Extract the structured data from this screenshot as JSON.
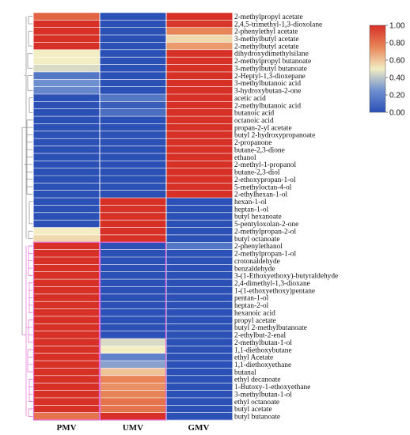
{
  "chart_data": {
    "type": "heatmap",
    "columns": [
      "PMV",
      "UMV",
      "GMV"
    ],
    "rows": [
      {
        "label": "2-methylpropyl acetate",
        "values": [
          0.85,
          0.0,
          1.0
        ]
      },
      {
        "label": "2,4,5-trimethyl-1,3-dioxolane",
        "values": [
          1.0,
          0.0,
          0.98
        ]
      },
      {
        "label": "2-phenylethyl acetate",
        "values": [
          1.0,
          0.0,
          0.75
        ]
      },
      {
        "label": "3-methylbutyl acetate",
        "values": [
          1.0,
          0.0,
          0.55
        ]
      },
      {
        "label": "2-methylbutyl acetate",
        "values": [
          1.0,
          0.0,
          0.7
        ]
      },
      {
        "label": "dihydroxydimethylsilane",
        "values": [
          0.5,
          0.0,
          1.0
        ]
      },
      {
        "label": "2-methylpropyl butanoate",
        "values": [
          0.5,
          0.0,
          1.0
        ]
      },
      {
        "label": "3-methylbutyl butanoate",
        "values": [
          0.45,
          0.0,
          1.0
        ]
      },
      {
        "label": "2-Heptyl-1,3-dioxepane",
        "values": [
          0.15,
          0.0,
          1.0
        ]
      },
      {
        "label": "3-methylbutanoic acid",
        "values": [
          0.25,
          0.0,
          1.0
        ]
      },
      {
        "label": "3-hydroxybutan-2-one",
        "values": [
          0.22,
          0.0,
          1.0
        ]
      },
      {
        "label": "acetic acid",
        "values": [
          0.0,
          0.15,
          1.0
        ]
      },
      {
        "label": "2-methylbutanoic acid",
        "values": [
          0.0,
          0.05,
          1.0
        ]
      },
      {
        "label": "butanoic acid",
        "values": [
          0.0,
          0.12,
          1.0
        ]
      },
      {
        "label": "octanoic acid",
        "values": [
          0.0,
          0.0,
          1.0
        ]
      },
      {
        "label": "propan-2-yl acetate",
        "values": [
          0.0,
          0.0,
          1.0
        ]
      },
      {
        "label": "butyl 2-hydroxypropanoate",
        "values": [
          0.0,
          0.0,
          1.0
        ]
      },
      {
        "label": "2-propanone",
        "values": [
          0.0,
          0.0,
          1.0
        ]
      },
      {
        "label": "butane-2,3-dione",
        "values": [
          0.0,
          0.0,
          1.0
        ]
      },
      {
        "label": "ethanol",
        "values": [
          0.0,
          0.0,
          1.0
        ]
      },
      {
        "label": "2-methyl-1-propanol",
        "values": [
          0.0,
          0.0,
          1.0
        ]
      },
      {
        "label": "butane-2,3-diol",
        "values": [
          0.0,
          0.0,
          1.0
        ]
      },
      {
        "label": "2-ethoxypropan-1-ol",
        "values": [
          0.0,
          0.0,
          1.0
        ]
      },
      {
        "label": "5-methyloctan-4-ol",
        "values": [
          0.0,
          0.0,
          1.0
        ]
      },
      {
        "label": "2-ethylhexan-1-ol",
        "values": [
          0.0,
          0.0,
          1.0
        ]
      },
      {
        "label": "hexan-1-ol",
        "values": [
          0.0,
          1.0,
          0.0
        ]
      },
      {
        "label": "heptan-1-ol",
        "values": [
          0.0,
          1.0,
          0.0
        ]
      },
      {
        "label": "butyl hexanoate",
        "values": [
          0.0,
          1.0,
          0.0
        ]
      },
      {
        "label": "5-pentyloxolan-2-one",
        "values": [
          0.0,
          1.0,
          0.0
        ]
      },
      {
        "label": "2-methylpropan-2-ol",
        "values": [
          0.5,
          1.0,
          0.0
        ]
      },
      {
        "label": "butyl octanoate",
        "values": [
          0.55,
          1.0,
          0.0
        ]
      },
      {
        "label": "2-phenylethanol",
        "values": [
          1.0,
          0.0,
          0.15
        ]
      },
      {
        "label": "2-methylpropan-1-ol",
        "values": [
          1.0,
          0.0,
          0.0
        ]
      },
      {
        "label": "crotonaldehyde",
        "values": [
          1.0,
          0.0,
          0.0
        ]
      },
      {
        "label": "benzaldehyde",
        "values": [
          1.0,
          0.0,
          0.0
        ]
      },
      {
        "label": "3-(1-Ethoxyethoxy)-butyraldehyde",
        "values": [
          1.0,
          0.0,
          0.0
        ]
      },
      {
        "label": "2,4-dimethyl-1,3-dioxane",
        "values": [
          1.0,
          0.0,
          0.0
        ]
      },
      {
        "label": "1-(1-ethoxyethoxy)pentane",
        "values": [
          1.0,
          0.0,
          0.0
        ]
      },
      {
        "label": "pentan-1-ol",
        "values": [
          1.0,
          0.0,
          0.0
        ]
      },
      {
        "label": "heptan-2-ol",
        "values": [
          1.0,
          0.0,
          0.0
        ]
      },
      {
        "label": "hexanoic acid",
        "values": [
          1.0,
          0.0,
          0.0
        ]
      },
      {
        "label": "propyl acetate",
        "values": [
          1.0,
          0.0,
          0.0
        ]
      },
      {
        "label": "butyl 2-methylbutanoate",
        "values": [
          1.0,
          0.0,
          0.0
        ]
      },
      {
        "label": "2-ethylbut-2-enal",
        "values": [
          1.0,
          0.0,
          0.0
        ]
      },
      {
        "label": "2-methylbutan-1-ol",
        "values": [
          1.0,
          0.45,
          0.0
        ]
      },
      {
        "label": "1,1-diethoxybutane",
        "values": [
          1.0,
          0.5,
          0.0
        ]
      },
      {
        "label": "ethyl Acetate",
        "values": [
          1.0,
          0.2,
          0.0
        ]
      },
      {
        "label": "1,1-diethoxyethane",
        "values": [
          1.0,
          0.3,
          0.0
        ]
      },
      {
        "label": "butanal",
        "values": [
          1.0,
          0.6,
          0.0
        ]
      },
      {
        "label": "ethyl decanoate",
        "values": [
          1.0,
          0.75,
          0.0
        ]
      },
      {
        "label": "1-Butoxy-1-ethoxyethane",
        "values": [
          1.0,
          0.72,
          0.0
        ]
      },
      {
        "label": "3-methylbutan-1-ol",
        "values": [
          1.0,
          0.75,
          0.0
        ]
      },
      {
        "label": "ethyl octanoate",
        "values": [
          1.0,
          0.8,
          0.0
        ]
      },
      {
        "label": "butyl acetate",
        "values": [
          1.0,
          0.8,
          0.0
        ]
      },
      {
        "label": "butyl butanoate",
        "values": [
          0.8,
          1.0,
          0.0
        ]
      }
    ],
    "colorbar": {
      "ticks": [
        "1.00",
        "0.80",
        "0.60",
        "0.40",
        "0.20",
        "0.00"
      ],
      "tick_values": [
        1.0,
        0.8,
        0.6,
        0.4,
        0.2,
        0.0
      ],
      "colors": [
        "#2b50b6",
        "#6e8fcf",
        "#f2edc3",
        "#e88558",
        "#d73027"
      ],
      "range": [
        0,
        1
      ]
    }
  }
}
